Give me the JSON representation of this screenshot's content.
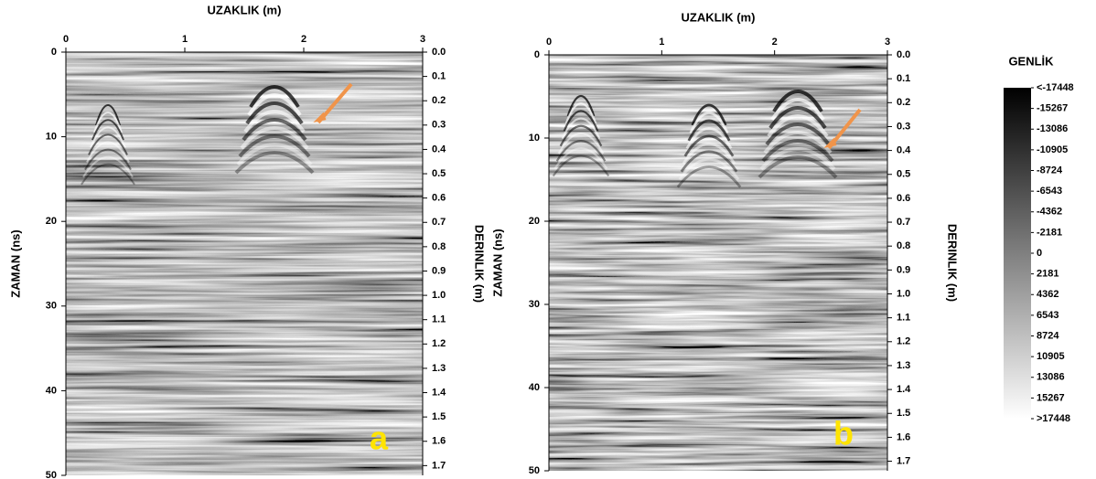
{
  "chart_data": [
    {
      "type": "radargram",
      "xlabel": "UZAKLIK (m)",
      "ylabel": "ZAMAN (ns)",
      "y2label": "DERINLIK (m)",
      "panel_label": "a",
      "xlim": [
        0,
        3
      ],
      "xticks": [
        0,
        1,
        2,
        3
      ],
      "ylim": [
        0,
        50
      ],
      "yticks": [
        0,
        10,
        20,
        30,
        40,
        50
      ],
      "y2lim": [
        0,
        1.74
      ],
      "y2ticks": [
        {
          "value": 0,
          "label": "0.0"
        },
        0.1,
        0.2,
        0.3,
        0.4,
        0.5,
        0.6,
        0.7,
        0.8,
        0.9,
        {
          "value": 1,
          "label": "1.0"
        },
        1.1,
        1.2,
        1.3,
        1.4,
        1.5,
        1.6,
        1.7
      ]
    },
    {
      "type": "radargram",
      "xlabel": "UZAKLIK (m)",
      "ylabel": "ZAMAN (ns)",
      "y2label": "DERINLIK (m)",
      "panel_label": "b",
      "xlim": [
        0,
        3
      ],
      "xticks": [
        0,
        1,
        2,
        3
      ],
      "ylim": [
        0,
        50
      ],
      "yticks": [
        0,
        10,
        20,
        30,
        40,
        50
      ],
      "y2lim": [
        0,
        1.74
      ],
      "y2ticks": [
        {
          "value": 0,
          "label": "0.0"
        },
        0.1,
        0.2,
        0.3,
        0.4,
        0.5,
        0.6,
        0.7,
        0.8,
        0.9,
        {
          "value": 1,
          "label": "1.0"
        },
        1.1,
        1.2,
        1.3,
        1.4,
        1.5,
        1.6,
        1.7
      ]
    }
  ],
  "colorbar": {
    "title": "GENLİK",
    "lim": [
      -17448,
      17448
    ],
    "ticks": [
      {
        "value": -17448,
        "label": "<-17448"
      },
      -15267,
      -13086,
      -10905,
      -8724,
      -6543,
      -4362,
      -2181,
      0,
      2181,
      4362,
      6543,
      8724,
      10905,
      13086,
      15267,
      {
        "value": 17448,
        "label": ">17448"
      }
    ]
  }
}
